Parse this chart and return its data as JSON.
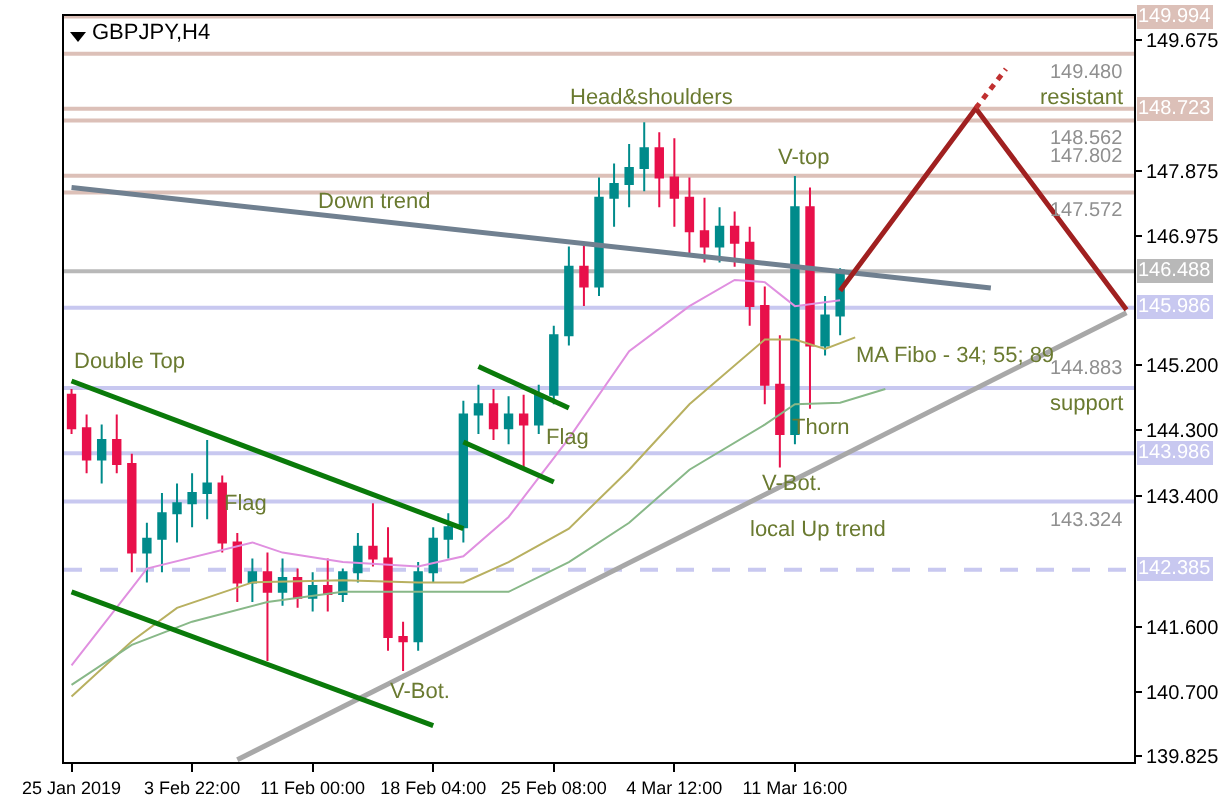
{
  "chart_data": {
    "type": "candlestick",
    "title": "GBPJPY,H4",
    "categories": [
      "25 Jan 2019",
      null,
      null,
      null,
      null,
      null,
      null,
      null,
      "3 Feb 22:00",
      null,
      null,
      null,
      null,
      null,
      null,
      null,
      "11 Feb 00:00",
      null,
      null,
      null,
      null,
      null,
      null,
      null,
      "18 Feb 04:00",
      null,
      null,
      null,
      null,
      null,
      null,
      null,
      "25 Feb 08:00",
      null,
      null,
      null,
      null,
      null,
      null,
      null,
      "4 Mar 12:00",
      null,
      null,
      null,
      null,
      null,
      null,
      null,
      "11 Mar 16:00",
      null,
      null,
      null,
      null,
      null,
      null,
      null,
      null,
      null,
      null,
      null,
      null,
      null,
      null,
      null,
      null,
      null,
      null,
      null,
      null,
      null,
      null
    ],
    "ohlc": [
      [
        144.79,
        144.87,
        144.25,
        144.33
      ],
      [
        144.33,
        144.52,
        143.71,
        143.9
      ],
      [
        143.9,
        144.38,
        143.57,
        144.17
      ],
      [
        144.17,
        144.52,
        143.71,
        143.84
      ],
      [
        143.84,
        143.98,
        142.35,
        142.62
      ],
      [
        142.62,
        143.03,
        142.21,
        142.81
      ],
      [
        142.81,
        143.44,
        142.35,
        143.16
      ],
      [
        143.16,
        143.57,
        142.76,
        143.3
      ],
      [
        143.3,
        143.71,
        142.97,
        143.44
      ],
      [
        143.44,
        144.17,
        143.08,
        143.57
      ],
      [
        143.57,
        143.68,
        142.62,
        142.76
      ],
      [
        142.76,
        142.89,
        141.94,
        142.21
      ],
      [
        142.21,
        142.54,
        141.94,
        142.35
      ],
      [
        142.35,
        142.62,
        141.13,
        142.08
      ],
      [
        142.08,
        142.54,
        141.89,
        142.27
      ],
      [
        142.27,
        142.4,
        141.86,
        142.0
      ],
      [
        142.0,
        142.35,
        141.81,
        142.16
      ],
      [
        142.16,
        142.54,
        141.81,
        142.05
      ],
      [
        142.05,
        142.4,
        141.94,
        142.35
      ],
      [
        142.35,
        142.89,
        142.21,
        142.7
      ],
      [
        142.7,
        143.3,
        142.43,
        142.54
      ],
      [
        142.54,
        142.97,
        141.27,
        141.46
      ],
      [
        141.46,
        141.67,
        140.99,
        141.4
      ],
      [
        141.4,
        142.49,
        141.27,
        142.35
      ],
      [
        142.35,
        142.97,
        142.21,
        142.81
      ],
      [
        142.81,
        143.16,
        142.54,
        142.97
      ],
      [
        142.97,
        144.71,
        142.76,
        144.52
      ],
      [
        144.52,
        144.93,
        144.25,
        144.66
      ],
      [
        144.66,
        144.87,
        144.17,
        144.33
      ],
      [
        144.33,
        144.77,
        144.11,
        144.52
      ],
      [
        144.52,
        144.79,
        143.79,
        144.38
      ],
      [
        144.38,
        144.93,
        144.25,
        144.79
      ],
      [
        144.79,
        145.74,
        144.66,
        145.61
      ],
      [
        145.61,
        146.83,
        145.47,
        146.55
      ],
      [
        146.55,
        146.88,
        146.01,
        146.28
      ],
      [
        146.28,
        147.78,
        146.15,
        147.5
      ],
      [
        147.5,
        147.97,
        147.1,
        147.69
      ],
      [
        147.69,
        148.24,
        147.37,
        147.91
      ],
      [
        147.91,
        148.54,
        147.59,
        148.18
      ],
      [
        148.18,
        148.4,
        147.37,
        147.78
      ],
      [
        147.78,
        148.32,
        147.1,
        147.5
      ],
      [
        147.5,
        147.78,
        146.69,
        147.04
      ],
      [
        147.04,
        147.5,
        146.61,
        146.83
      ],
      [
        146.83,
        147.37,
        146.61,
        147.1
      ],
      [
        147.1,
        147.31,
        146.55,
        146.88
      ],
      [
        146.88,
        147.1,
        145.74,
        146.01
      ],
      [
        146.01,
        146.28,
        144.66,
        144.93
      ],
      [
        144.93,
        145.61,
        143.79,
        144.25
      ],
      [
        144.25,
        147.8,
        144.11,
        147.37
      ],
      [
        147.37,
        147.64,
        144.6,
        145.47
      ],
      [
        145.47,
        146.15,
        145.33,
        145.88
      ],
      [
        145.88,
        146.53,
        145.61,
        146.5
      ],
      null,
      null,
      null,
      null,
      null,
      null,
      null,
      null,
      null,
      null,
      null,
      null,
      null,
      null,
      null,
      null,
      null,
      null,
      null
    ],
    "colors": [
      "#e8104a",
      "#e8104a",
      "#008b8b",
      "#e8104a",
      "#e8104a",
      "#008b8b",
      "#008b8b",
      "#008b8b",
      "#008b8b",
      "#008b8b",
      "#e8104a",
      "#e8104a",
      "#008b8b",
      "#e8104a",
      "#008b8b",
      "#e8104a",
      "#008b8b",
      "#e8104a",
      "#008b8b",
      "#008b8b",
      "#e8104a",
      "#e8104a",
      "#e8104a",
      "#008b8b",
      "#008b8b",
      "#008b8b",
      "#008b8b",
      "#008b8b",
      "#e8104a",
      "#008b8b",
      "#e8104a",
      "#008b8b",
      "#008b8b",
      "#008b8b",
      "#e8104a",
      "#008b8b",
      "#008b8b",
      "#008b8b",
      "#008b8b",
      "#e8104a",
      "#e8104a",
      "#e8104a",
      "#e8104a",
      "#008b8b",
      "#e8104a",
      "#e8104a",
      "#e8104a",
      "#e8104a",
      "#008b8b",
      "#e8104a",
      "#008b8b",
      "#008b8b",
      null,
      null,
      null,
      null,
      null,
      null,
      null,
      null,
      null,
      null,
      null,
      null,
      null,
      null,
      null,
      null,
      null,
      null,
      null
    ],
    "series": [
      {
        "type": "line",
        "color": "#e090e0",
        "values": [
          141.07,
          null,
          null,
          null,
          142.13,
          142.4,
          null,
          null,
          null,
          null,
          null,
          null,
          142.76,
          null,
          142.62,
          null,
          null,
          null,
          142.49,
          null,
          null,
          null,
          null,
          142.43,
          null,
          null,
          142.57,
          null,
          null,
          143.11,
          null,
          null,
          null,
          144.19,
          null,
          null,
          null,
          145.39,
          null,
          null,
          null,
          146.01,
          null,
          null,
          146.37,
          null,
          146.34,
          null,
          146.01,
          null,
          null,
          146.09,
          null,
          null,
          null,
          null,
          null,
          null,
          null,
          null,
          null,
          null,
          null,
          null,
          null,
          null,
          null,
          null,
          null,
          null,
          null
        ]
      },
      {
        "type": "line",
        "color": "#b8b060",
        "values": [
          140.64,
          null,
          null,
          null,
          141.4,
          null,
          null,
          141.86,
          null,
          null,
          null,
          null,
          142.21,
          null,
          null,
          null,
          null,
          null,
          142.24,
          null,
          null,
          null,
          null,
          142.21,
          null,
          null,
          142.21,
          null,
          null,
          142.49,
          null,
          null,
          null,
          142.95,
          null,
          null,
          null,
          143.76,
          null,
          null,
          null,
          144.66,
          null,
          null,
          null,
          null,
          145.55,
          null,
          145.55,
          null,
          145.42,
          null,
          145.58,
          null,
          null,
          null,
          null,
          null,
          null,
          null,
          null,
          null,
          null,
          null,
          null,
          null,
          null,
          null,
          null,
          null,
          null
        ]
      },
      {
        "type": "line",
        "color": "#88b888",
        "values": [
          140.8,
          null,
          null,
          null,
          141.35,
          null,
          null,
          null,
          141.67,
          null,
          null,
          null,
          null,
          141.94,
          null,
          null,
          null,
          null,
          142.08,
          null,
          null,
          null,
          null,
          null,
          null,
          null,
          142.08,
          null,
          null,
          142.08,
          null,
          null,
          null,
          142.49,
          null,
          null,
          null,
          143.03,
          null,
          null,
          null,
          143.76,
          null,
          null,
          null,
          null,
          144.38,
          null,
          144.66,
          null,
          null,
          144.68,
          null,
          null,
          144.87,
          null,
          null,
          null,
          null,
          null,
          null,
          null,
          null,
          null,
          null,
          null,
          null,
          null,
          null,
          null,
          null
        ]
      },
      {
        "type": "line",
        "color": "#708090",
        "values": [
          147.64,
          null,
          null,
          null,
          null,
          null,
          null,
          null,
          null,
          null,
          null,
          null,
          null,
          null,
          null,
          null,
          null,
          null,
          null,
          null,
          null,
          null,
          null,
          null,
          null,
          null,
          null,
          null,
          null,
          null,
          null,
          null,
          null,
          null,
          null,
          null,
          null,
          null,
          null,
          null,
          null,
          null,
          null,
          null,
          null,
          null,
          null,
          null,
          null,
          null,
          null,
          null,
          null,
          null,
          null,
          null,
          null,
          null,
          null,
          null,
          null,
          146.26,
          null,
          null,
          null,
          null,
          null,
          null,
          null,
          null,
          null
        ]
      },
      {
        "type": "line",
        "color": "#a8a8a8",
        "values": [
          null,
          null,
          null,
          null,
          null,
          null,
          null,
          null,
          null,
          null,
          null,
          139.77,
          null,
          null,
          null,
          null,
          null,
          null,
          null,
          null,
          null,
          null,
          null,
          null,
          null,
          null,
          null,
          null,
          null,
          null,
          null,
          null,
          null,
          null,
          null,
          null,
          null,
          null,
          null,
          null,
          null,
          null,
          null,
          null,
          null,
          null,
          null,
          null,
          null,
          null,
          null,
          null,
          null,
          null,
          null,
          null,
          null,
          null,
          null,
          null,
          null,
          null,
          null,
          null,
          null,
          null,
          null,
          null,
          null,
          null,
          145.92
        ]
      },
      {
        "type": "line",
        "color": "#0a7a0a",
        "values": [
          144.98,
          null,
          null,
          null,
          null,
          null,
          null,
          null,
          null,
          null,
          null,
          null,
          null,
          null,
          null,
          null,
          null,
          null,
          null,
          null,
          null,
          null,
          null,
          null,
          null,
          null,
          142.95,
          null,
          null,
          null,
          null,
          null,
          null,
          null,
          null,
          null,
          null,
          null,
          null,
          null,
          null,
          null,
          null,
          null,
          null,
          null,
          null,
          null,
          null,
          null,
          null,
          null,
          null,
          null,
          null,
          null,
          null,
          null,
          null,
          null,
          null,
          null,
          null,
          null,
          null,
          null,
          null,
          null,
          null,
          null,
          null
        ]
      },
      {
        "type": "line",
        "color": "#0a7a0a",
        "values": [
          142.08,
          null,
          null,
          null,
          null,
          null,
          null,
          null,
          null,
          null,
          null,
          null,
          null,
          null,
          null,
          null,
          null,
          null,
          null,
          null,
          null,
          null,
          null,
          null,
          140.24,
          null,
          null,
          null,
          null,
          null,
          null,
          null,
          null,
          null,
          null,
          null,
          null,
          null,
          null,
          null,
          null,
          null,
          null,
          null,
          null,
          null,
          null,
          null,
          null,
          null,
          null,
          null,
          null,
          null,
          null,
          null,
          null,
          null,
          null,
          null,
          null,
          null,
          null,
          null,
          null,
          null,
          null,
          null,
          null,
          null,
          null
        ]
      },
      {
        "type": "line",
        "color": "#0a7a0a",
        "values": [
          null,
          null,
          null,
          null,
          null,
          null,
          null,
          null,
          null,
          null,
          null,
          null,
          null,
          null,
          null,
          null,
          null,
          null,
          null,
          null,
          null,
          null,
          null,
          null,
          null,
          null,
          null,
          145.18,
          null,
          null,
          null,
          null,
          null,
          144.61,
          null,
          null,
          null,
          null,
          null,
          null,
          null,
          null,
          null,
          null,
          null,
          null,
          null,
          null,
          null,
          null,
          null,
          null,
          null,
          null,
          null,
          null,
          null,
          null,
          null,
          null,
          null,
          null,
          null,
          null,
          null,
          null,
          null,
          null,
          null,
          null,
          null
        ]
      },
      {
        "type": "line",
        "color": "#0a7a0a",
        "values": [
          null,
          null,
          null,
          null,
          null,
          null,
          null,
          null,
          null,
          null,
          null,
          null,
          null,
          null,
          null,
          null,
          null,
          null,
          null,
          null,
          null,
          null,
          null,
          null,
          null,
          null,
          144.14,
          null,
          null,
          null,
          null,
          null,
          143.59,
          null,
          null,
          null,
          null,
          null,
          null,
          null,
          null,
          null,
          null,
          null,
          null,
          null,
          null,
          null,
          null,
          null,
          null,
          null,
          null,
          null,
          null,
          null,
          null,
          null,
          null,
          null,
          null,
          null,
          null,
          null,
          null,
          null,
          null,
          null,
          null,
          null,
          null
        ]
      },
      {
        "type": "line",
        "color": "#a02020",
        "values": [
          null,
          null,
          null,
          null,
          null,
          null,
          null,
          null,
          null,
          null,
          null,
          null,
          null,
          null,
          null,
          null,
          null,
          null,
          null,
          null,
          null,
          null,
          null,
          null,
          null,
          null,
          null,
          null,
          null,
          null,
          null,
          null,
          null,
          null,
          null,
          null,
          null,
          null,
          null,
          null,
          null,
          null,
          null,
          null,
          null,
          null,
          null,
          null,
          null,
          null,
          null,
          146.22,
          null,
          null,
          null,
          null,
          null,
          null,
          null,
          null,
          148.73,
          null,
          null,
          null,
          null,
          null,
          null,
          null,
          null,
          null,
          145.96
        ]
      },
      {
        "type": "line",
        "color": "#c03030",
        "line_style": "dotted",
        "values": [
          null,
          null,
          null,
          null,
          null,
          null,
          null,
          null,
          null,
          null,
          null,
          null,
          null,
          null,
          null,
          null,
          null,
          null,
          null,
          null,
          null,
          null,
          null,
          null,
          null,
          null,
          null,
          null,
          null,
          null,
          null,
          null,
          null,
          null,
          null,
          null,
          null,
          null,
          null,
          null,
          null,
          null,
          null,
          null,
          null,
          null,
          null,
          null,
          null,
          null,
          null,
          null,
          null,
          null,
          null,
          null,
          null,
          null,
          null,
          null,
          148.73,
          null,
          149.27,
          null,
          null,
          null,
          null,
          null,
          null,
          null,
          null
        ]
      }
    ],
    "ylim": [
      139.74,
      150.0
    ],
    "yticks": [
      149.675,
      147.875,
      146.975,
      {
        "value": 145.2,
        "label": "145.200"
      },
      {
        "value": 144.3,
        "label": "144.300"
      },
      {
        "value": 143.4,
        "label": "143.400"
      },
      {
        "value": 141.6,
        "label": "141.600"
      },
      {
        "value": 140.7,
        "label": "140.700"
      },
      139.825
    ],
    "ref_lines": [
      {
        "axis": "y",
        "value": 149.994,
        "label": "149.994",
        "color": "#dcc0b8"
      },
      {
        "axis": "y",
        "value": 149.48,
        "color": "#dcc0b8"
      },
      {
        "axis": "y",
        "value": 148.723,
        "label": "148.723",
        "color": "#dcc0b8"
      },
      {
        "axis": "y",
        "value": 148.562,
        "color": "#dcc0b8"
      },
      {
        "axis": "y",
        "value": 147.802,
        "color": "#dcc0b8"
      },
      {
        "axis": "y",
        "value": 147.572,
        "color": "#dcc0b8"
      },
      {
        "axis": "y",
        "value": 146.488,
        "label": "146.488",
        "color": "#b8b8b8"
      },
      {
        "axis": "y",
        "value": 145.986,
        "label": "145.986",
        "color": "#c8c8f0"
      },
      {
        "axis": "y",
        "value": 144.883,
        "color": "#c8c8f0"
      },
      {
        "axis": "y",
        "value": 143.986,
        "label": "143.986",
        "color": "#c8c8f0"
      },
      {
        "axis": "y",
        "value": 143.324,
        "color": "#c8c8f0"
      },
      {
        "axis": "y",
        "value": 142.385,
        "label": "142.385",
        "color": "#c8c8f0",
        "line_style": "dashed"
      }
    ],
    "annotations": [
      "Double Top",
      "Flag",
      "Flag",
      "V-Bot.",
      "Head&shoulders",
      "Down trend",
      "V-top",
      "Thorn",
      "V-Bot.",
      "local Up trend",
      "MA Fibo - 34; 55; 89",
      "support",
      "resistant",
      {
        "text": "149.480",
        "y": 149.48
      },
      {
        "text": "148.562",
        "y": 148.562
      },
      {
        "text": "147.802",
        "y": 147.802
      },
      {
        "text": "147.572",
        "y": 147.572
      },
      {
        "text": "144.883",
        "y": 144.883
      },
      {
        "text": "143.324",
        "y": 143.324
      }
    ]
  }
}
